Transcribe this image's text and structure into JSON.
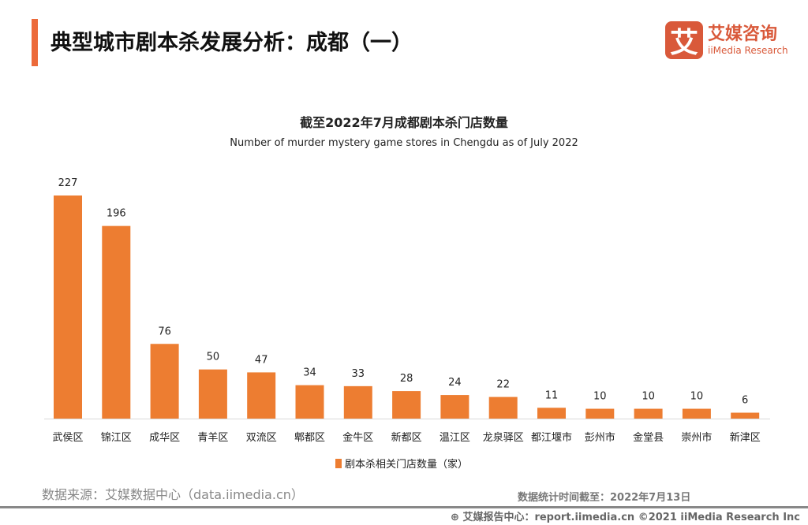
{
  "header": {
    "title": "典型城市剧本杀发展分析：成都（一）"
  },
  "logo": {
    "mark": "艾",
    "cn": "艾媒咨询",
    "en": "iiMedia Research"
  },
  "colors": {
    "accent": "#ec6a3a",
    "bar": "#ed7d31",
    "logo": "#d9593a"
  },
  "chart_data": {
    "type": "bar",
    "title": "截至2022年7月成都剧本杀门店数量",
    "subtitle": "Number of murder mystery game stores in Chengdu as of July 2022",
    "categories": [
      "武侯区",
      "锦江区",
      "成华区",
      "青羊区",
      "双流区",
      "郫都区",
      "金牛区",
      "新都区",
      "温江区",
      "龙泉驿区",
      "都江堰市",
      "彭州市",
      "金堂县",
      "崇州市",
      "新津区"
    ],
    "series": [
      {
        "name": "剧本杀相关门店数量（家）",
        "values": [
          227,
          196,
          76,
          50,
          47,
          34,
          33,
          28,
          24,
          22,
          11,
          10,
          10,
          10,
          6
        ]
      }
    ],
    "ylim": [
      0,
      227
    ],
    "grid": false,
    "legend": "bottom",
    "data_labels": true
  },
  "footer": {
    "source": "数据来源：艾媒数据中心（data.iimedia.cn）",
    "asof": "数据统计时间截至：2022年7月13日",
    "copyright": "⊕ 艾媒报告中心：report.iimedia.cn  ©2021  iiMedia Research Inc"
  }
}
